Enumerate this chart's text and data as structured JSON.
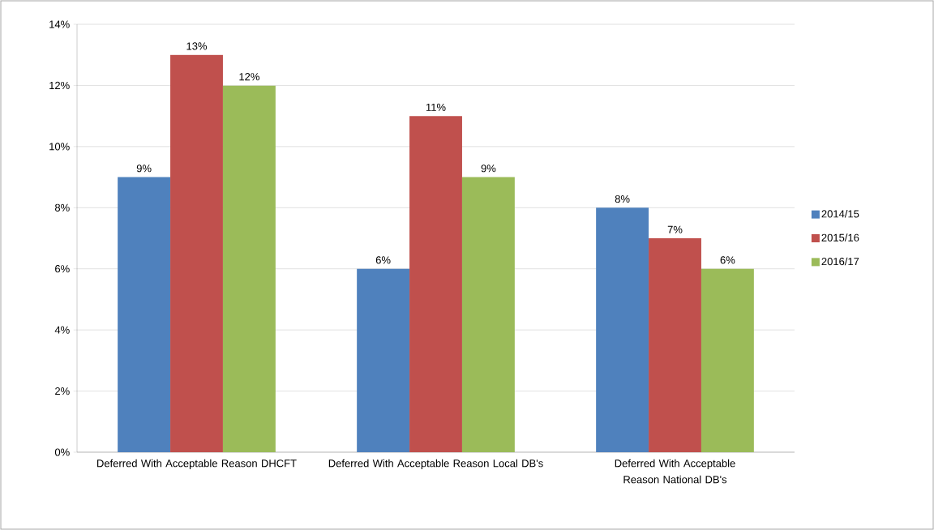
{
  "chart_data": {
    "type": "bar",
    "categories": [
      "Deferred With Acceptable Reason DHCFT",
      "Deferred With Acceptable Reason Local DB's",
      "Deferred With Acceptable Reason National DB's"
    ],
    "series": [
      {
        "name": "2014/15",
        "color": "#4f81bd",
        "values": [
          9,
          6,
          8
        ],
        "value_labels": [
          "9%",
          "6%",
          "8%"
        ]
      },
      {
        "name": "2015/16",
        "color": "#c0504d",
        "values": [
          13,
          11,
          7
        ],
        "value_labels": [
          "13%",
          "11%",
          "7%"
        ]
      },
      {
        "name": "2016/17",
        "color": "#9bbb59",
        "values": [
          12,
          9,
          6
        ],
        "value_labels": [
          "12%",
          "9%",
          "6%"
        ]
      }
    ],
    "ylim": [
      0,
      14
    ],
    "yticks": [
      {
        "value": 0,
        "label": "0%"
      },
      {
        "value": 2,
        "label": "2%"
      },
      {
        "value": 4,
        "label": "4%"
      },
      {
        "value": 6,
        "label": "6%"
      },
      {
        "value": 8,
        "label": "8%"
      },
      {
        "value": 10,
        "label": "10%"
      },
      {
        "value": 12,
        "label": "12%"
      },
      {
        "value": 14,
        "label": "14%"
      }
    ],
    "grid": "y",
    "legend": "right"
  }
}
